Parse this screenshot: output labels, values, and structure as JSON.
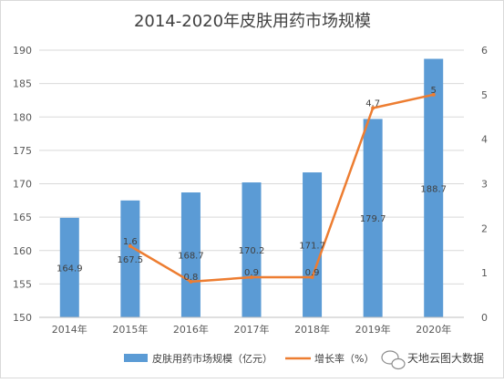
{
  "chart_data": {
    "type": "bar+line",
    "title": "2014-2020年皮肤用药市场规模",
    "categories": [
      "2014年",
      "2015年",
      "2016年",
      "2017年",
      "2018年",
      "2019年",
      "2020年"
    ],
    "series": [
      {
        "name": "皮肤用药市场规模（亿元）",
        "type": "bar",
        "axis": "left",
        "color": "#5b9bd5",
        "values": [
          164.9,
          167.5,
          168.7,
          170.2,
          171.7,
          179.7,
          188.7
        ],
        "labels": [
          "164.9",
          "167.5",
          "168.7",
          "170.2",
          "171.7",
          "179.7",
          "188.7"
        ]
      },
      {
        "name": "增长率（%）",
        "type": "line",
        "axis": "right",
        "color": "#ed7d31",
        "values": [
          null,
          1.6,
          0.8,
          0.9,
          0.9,
          4.7,
          5
        ],
        "labels": [
          "",
          "1.6",
          "0.8",
          "0.9",
          "0.9",
          "4.7",
          "5"
        ]
      }
    ],
    "y_left": {
      "ylim": [
        150,
        190
      ],
      "ticks": [
        "150",
        "155",
        "160",
        "165",
        "170",
        "175",
        "180",
        "185",
        "190"
      ]
    },
    "y_right": {
      "ylim": [
        0,
        6
      ],
      "ticks": [
        "0",
        "1",
        "2",
        "3",
        "4",
        "5",
        "6"
      ]
    },
    "grid": true,
    "legend_placement": "bottom-center"
  },
  "watermark": {
    "text": "天地云图大数据",
    "icon": "wechat-icon"
  }
}
